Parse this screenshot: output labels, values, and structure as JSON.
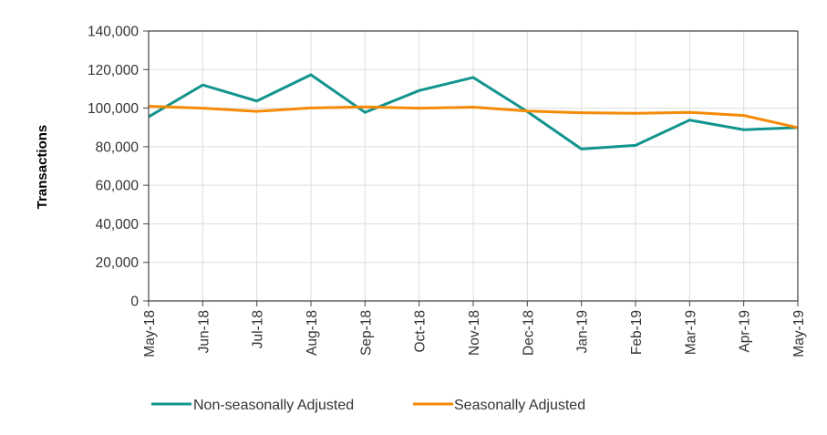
{
  "chart_data": {
    "type": "line",
    "title": "",
    "xlabel": "",
    "ylabel": "Transactions",
    "ylim": [
      0,
      140000
    ],
    "yticks": [
      0,
      20000,
      40000,
      60000,
      80000,
      100000,
      120000,
      140000
    ],
    "ytick_labels": [
      "0",
      "20,000",
      "40,000",
      "60,000",
      "80,000",
      "100,000",
      "120,000",
      "140,000"
    ],
    "grid": true,
    "legend_position": "bottom",
    "categories": [
      "May-18",
      "Jun-18",
      "Jul-18",
      "Aug-18",
      "Sep-18",
      "Oct-18",
      "Nov-18",
      "Dec-18",
      "Jan-19",
      "Feb-19",
      "Mar-19",
      "Apr-19",
      "May-19"
    ],
    "series": [
      {
        "name": "Non-seasonally Adjusted",
        "color": "#12948E",
        "values": [
          95500,
          112000,
          103700,
          117300,
          97800,
          109100,
          115900,
          98200,
          78800,
          80700,
          93800,
          88800,
          89900
        ]
      },
      {
        "name": "Seasonally Adjusted",
        "color": "#F58A07",
        "values": [
          101000,
          100000,
          98300,
          100100,
          100600,
          100000,
          100500,
          98500,
          97600,
          97300,
          97800,
          96200,
          89900
        ]
      }
    ]
  }
}
